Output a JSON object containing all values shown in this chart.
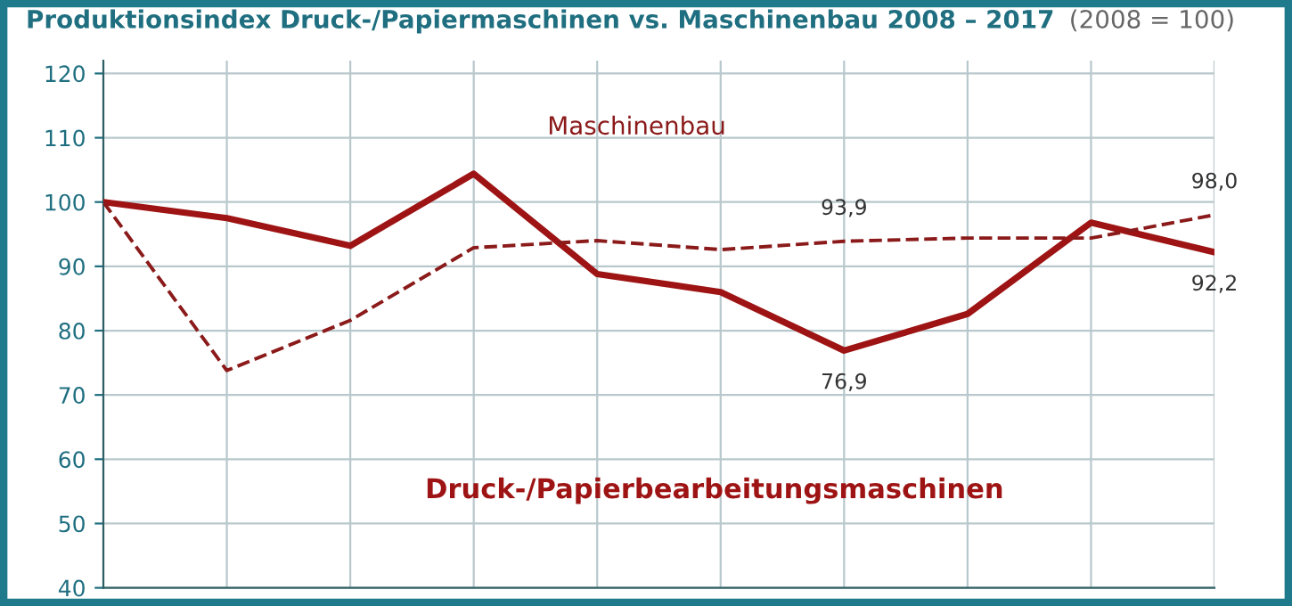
{
  "chart_data": {
    "type": "line",
    "title": "Produktionsindex Druck-/Papiermaschinen vs. Maschinenbau 2008 – 2017",
    "subtitle": "(2008 = 100)",
    "categories": [
      null,
      null,
      null,
      null,
      null,
      null,
      null,
      null,
      null,
      null
    ],
    "series": [
      {
        "name": "Druck-/Papierbearbeitungsmaschinen",
        "color": "#9e1414",
        "line_style": "solid",
        "values": [
          100,
          97.5,
          93.2,
          104.4,
          88.8,
          86.0,
          76.9,
          82.6,
          96.8,
          92.2
        ],
        "value_labels": [
          null,
          null,
          null,
          null,
          null,
          null,
          "76,9",
          null,
          null,
          "92,2"
        ]
      },
      {
        "name": "Maschinenbau",
        "color": "#8b1a1a",
        "line_style": "dashed",
        "values": [
          100,
          73.8,
          81.6,
          92.9,
          94.0,
          92.6,
          93.9,
          94.4,
          94.4,
          98.0
        ],
        "value_labels": [
          null,
          null,
          null,
          null,
          null,
          null,
          "93,9",
          null,
          null,
          "98,0"
        ]
      }
    ],
    "ylim": [
      40,
      122
    ],
    "yticks": [
      40,
      50,
      60,
      70,
      80,
      90,
      100,
      110,
      120
    ],
    "grid": true,
    "legend": false,
    "marker": "none"
  }
}
